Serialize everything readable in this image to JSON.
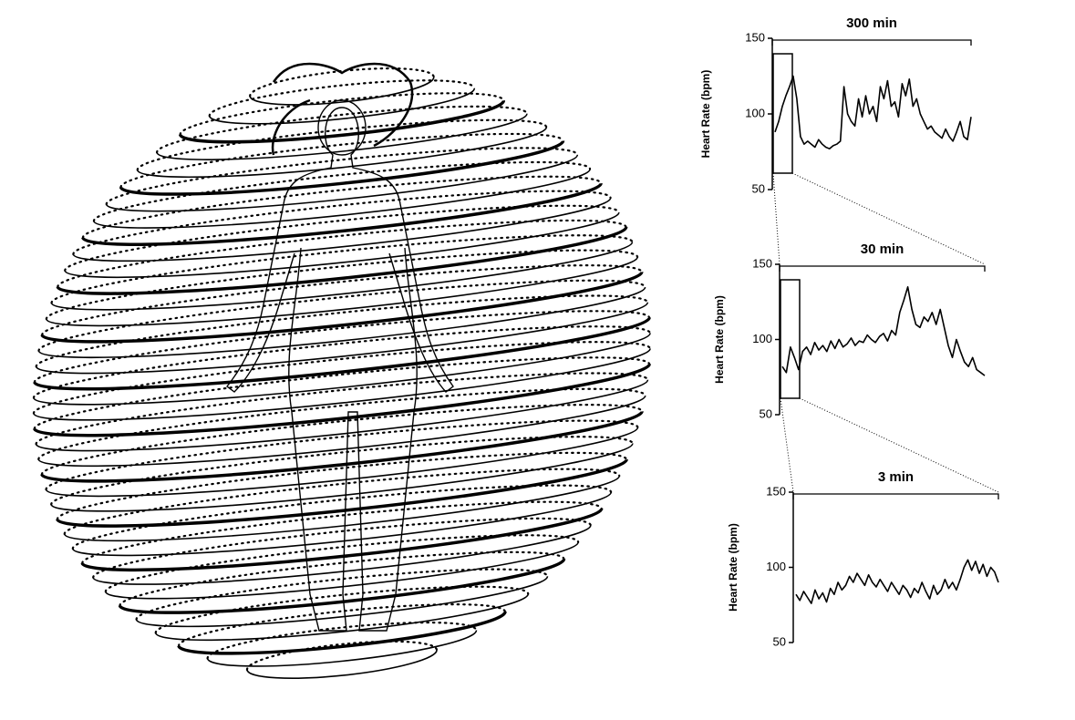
{
  "chart_data": [
    {
      "type": "line",
      "annotation": "300 min",
      "y_label": "Heart Rate (bpm)",
      "color": "#000000",
      "ylim": [
        50,
        150
      ],
      "yticks": [
        50,
        100,
        150
      ],
      "values": [
        88,
        95,
        105,
        112,
        118,
        125,
        110,
        85,
        80,
        82,
        80,
        78,
        83,
        80,
        78,
        77,
        79,
        80,
        82,
        118,
        100,
        95,
        92,
        110,
        98,
        112,
        100,
        105,
        95,
        118,
        110,
        122,
        105,
        108,
        98,
        120,
        112,
        123,
        105,
        110,
        100,
        95,
        90,
        92,
        88,
        86,
        84,
        90,
        85,
        82,
        88,
        95,
        85,
        83,
        98
      ]
    },
    {
      "type": "line",
      "annotation": "30 min",
      "y_label": "Heart Rate (bpm)",
      "color": "#000000",
      "ylim": [
        50,
        150
      ],
      "yticks": [
        50,
        100,
        150
      ],
      "values": [
        82,
        78,
        95,
        88,
        80,
        92,
        95,
        90,
        98,
        93,
        96,
        92,
        99,
        94,
        100,
        95,
        97,
        101,
        96,
        99,
        98,
        103,
        100,
        98,
        102,
        104,
        99,
        106,
        103,
        118,
        126,
        135,
        120,
        110,
        108,
        115,
        112,
        118,
        110,
        120,
        108,
        96,
        88,
        100,
        92,
        85,
        82,
        88,
        80,
        78,
        76
      ]
    },
    {
      "type": "line",
      "annotation": "3 min",
      "y_label": "Heart Rate (bpm)",
      "color": "#000000",
      "ylim": [
        50,
        150
      ],
      "yticks": [
        50,
        100,
        150
      ],
      "values": [
        82,
        78,
        84,
        80,
        76,
        85,
        79,
        83,
        77,
        86,
        82,
        90,
        85,
        88,
        94,
        90,
        96,
        92,
        88,
        95,
        90,
        87,
        92,
        88,
        84,
        90,
        86,
        82,
        88,
        85,
        80,
        86,
        83,
        90,
        84,
        79,
        88,
        82,
        85,
        92,
        86,
        90,
        85,
        92,
        100,
        105,
        98,
        104,
        96,
        102,
        94,
        100,
        97,
        90
      ]
    }
  ]
}
